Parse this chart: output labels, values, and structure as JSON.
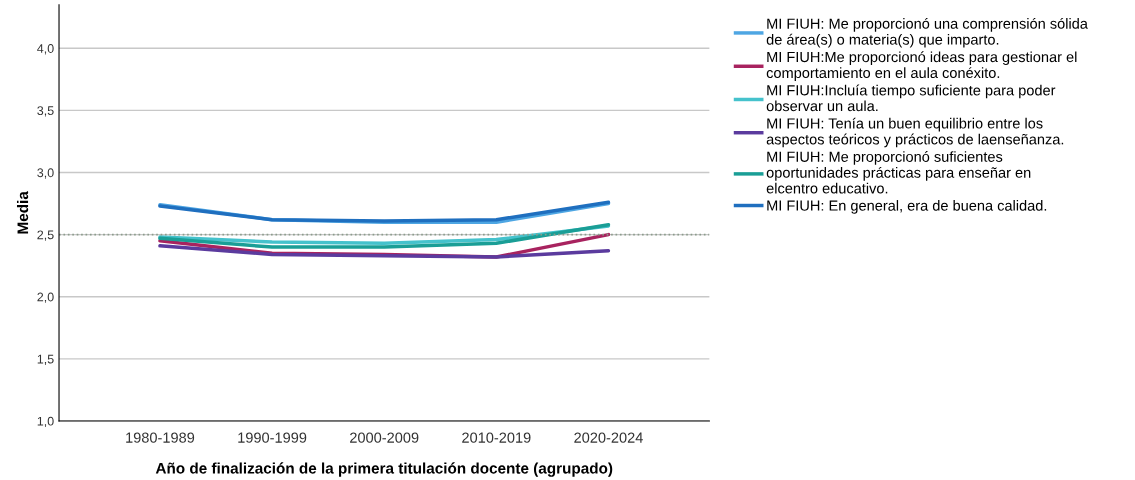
{
  "chart_data": {
    "type": "line",
    "xlabel": "Año de finalización de la primera titulación docente (agrupado)",
    "ylabel": "Media",
    "categories": [
      "1980-1989",
      "1990-1999",
      "2000-2009",
      "2010-2019",
      "2020-2024"
    ],
    "series": [
      {
        "name": "MI FIUH: Me proporcionó una comprensión sólida de área(s) o materia(s) que imparto.",
        "color": "#4ea6e3",
        "values": [
          2.74,
          2.62,
          2.6,
          2.6,
          2.75
        ]
      },
      {
        "name": "MI FIUH:Me proporcionó ideas para gestionar el comportamiento en el aula conéxito.",
        "color": "#a8235f",
        "values": [
          2.45,
          2.35,
          2.34,
          2.32,
          2.5
        ]
      },
      {
        "name": "MI FIUH:Incluía tiempo suficiente para poder observar un aula.",
        "color": "#45c2cc",
        "values": [
          2.48,
          2.44,
          2.43,
          2.46,
          2.57
        ]
      },
      {
        "name": "MI FIUH: Tenía un buen equilibrio entre los aspectos teóricos y prácticos de laenseñanza.",
        "color": "#5b3b9e",
        "values": [
          2.41,
          2.34,
          2.33,
          2.32,
          2.37
        ]
      },
      {
        "name": "MI FIUH: Me proporcionó suficientes oportunidades prácticas para enseñar en elcentro educativo.",
        "color": "#1a9e96",
        "values": [
          2.47,
          2.4,
          2.4,
          2.43,
          2.58
        ]
      },
      {
        "name": "MI FIUH: En general, era de buena calidad.",
        "color": "#1f6fbf",
        "values": [
          2.73,
          2.62,
          2.61,
          2.62,
          2.76
        ]
      }
    ],
    "ylim": [
      1.0,
      4.35
    ],
    "yticks": [
      {
        "value": 1.0,
        "label": "1,0"
      },
      {
        "value": 1.5,
        "label": "1,5"
      },
      {
        "value": 2.0,
        "label": "2,0"
      },
      {
        "value": 2.5,
        "label": "2,5"
      },
      {
        "value": 3.0,
        "label": "3,0"
      },
      {
        "value": 3.5,
        "label": "3,5"
      },
      {
        "value": 4.0,
        "label": "4,0"
      }
    ],
    "grid": "y",
    "legend": "right",
    "line_style": "solid",
    "marker": "none",
    "ref_lines": [
      {
        "axis": "y",
        "value": 2.5,
        "color": "#8c9c8c",
        "line_style": "dotted"
      }
    ]
  }
}
